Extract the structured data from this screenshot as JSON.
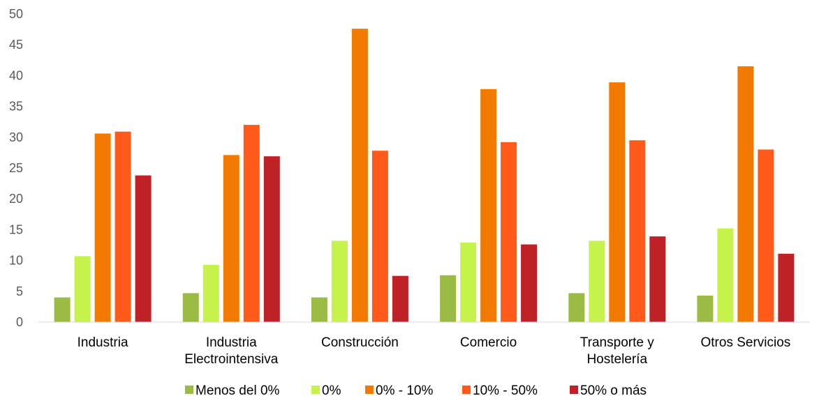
{
  "chart_data": {
    "type": "bar",
    "title": "",
    "xlabel": "",
    "ylabel": "",
    "ylim": [
      0,
      50
    ],
    "yticks": [
      "0",
      "5",
      "10",
      "15",
      "20",
      "25",
      "30",
      "35",
      "40",
      "45",
      "50"
    ],
    "grid": false,
    "legend_position": "bottom",
    "categories": [
      [
        "Industria"
      ],
      [
        "Industria",
        "Electrointensiva"
      ],
      [
        "Construcción"
      ],
      [
        "Comercio"
      ],
      [
        "Transporte y",
        "Hostelería"
      ],
      [
        "Otros Servicios"
      ]
    ],
    "series": [
      {
        "name": "Menos del 0%",
        "color": "#9bbb44",
        "values": [
          4.0,
          4.7,
          4.0,
          7.6,
          4.7,
          4.3
        ]
      },
      {
        "name": "0%",
        "color": "#c5f24b",
        "values": [
          10.7,
          9.3,
          13.2,
          12.9,
          13.2,
          15.2
        ]
      },
      {
        "name": "0% - 10%",
        "color": "#f27a00",
        "values": [
          30.6,
          27.1,
          47.6,
          37.8,
          38.9,
          41.5
        ]
      },
      {
        "name": "10% - 50%",
        "color": "#ff5a1a",
        "values": [
          30.9,
          32.0,
          27.8,
          29.2,
          29.5,
          28.0
        ]
      },
      {
        "name": "50% o más",
        "color": "#be2126",
        "values": [
          23.8,
          26.9,
          7.5,
          12.6,
          13.9,
          11.1
        ]
      }
    ]
  }
}
